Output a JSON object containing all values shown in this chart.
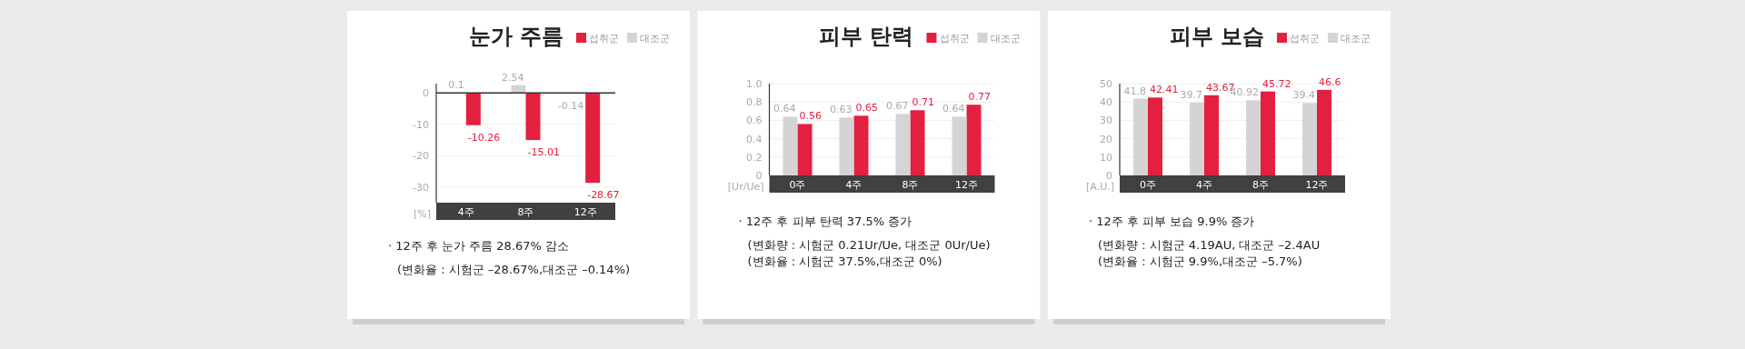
{
  "chart_data": [
    {
      "type": "bar",
      "title": "눈가 주름",
      "ylabel": "[%]",
      "categories": [
        "4주",
        "8주",
        "12주"
      ],
      "ylim": [
        -35,
        3
      ],
      "yticks": [
        0,
        -10,
        -20,
        -30
      ],
      "grid": "y",
      "legend": "top right",
      "data_labels": true,
      "series": [
        {
          "name": "섭취군",
          "color": "#e3203f",
          "values": [
            -10.26,
            -15.01,
            -28.67
          ]
        },
        {
          "name": "대조군",
          "color": "#d4d4d4",
          "values": [
            0.1,
            2.54,
            -0.14
          ]
        }
      ],
      "annotations": [
        "· 12주 후 눈가 주름 28.67% 감소",
        "(변화율 : 시험군 –28.67%,대조군 –0.14%)"
      ]
    },
    {
      "type": "bar",
      "title": "피부 탄력",
      "ylabel": "[Ur/Ue]",
      "categories": [
        "0주",
        "4주",
        "8주",
        "12주"
      ],
      "ylim": [
        0,
        1
      ],
      "yticks": [
        {
          "value": 0,
          "label": "0"
        },
        {
          "value": 0.2,
          "label": "0.2"
        },
        {
          "value": 0.4,
          "label": "0.4"
        },
        {
          "value": 0.6,
          "label": "0.6"
        },
        {
          "value": 0.8,
          "label": "0.8"
        },
        {
          "value": 1,
          "label": "1.0"
        }
      ],
      "grid": "y",
      "legend": "top right",
      "data_labels": true,
      "series": [
        {
          "name": "섭취군",
          "color": "#e3203f",
          "values": [
            0.56,
            0.65,
            0.71,
            0.77
          ]
        },
        {
          "name": "대조군",
          "color": "#d4d4d4",
          "values": [
            0.64,
            0.63,
            0.67,
            0.64
          ]
        }
      ],
      "annotations": [
        "· 12주 후 피부 탄력 37.5% 증가",
        "(변화량 : 시험군 0.21Ur/Ue, 대조군 0Ur/Ue)",
        "(변화율 : 시험군 37.5%,대조군 0%)"
      ]
    },
    {
      "type": "bar",
      "title": "피부 보습",
      "ylabel": "[A.U.]",
      "categories": [
        "0주",
        "4주",
        "8주",
        "12주"
      ],
      "ylim": [
        0,
        50
      ],
      "yticks": [
        0,
        10,
        20,
        30,
        40,
        50
      ],
      "grid": "y",
      "legend": "top right",
      "data_labels": true,
      "series": [
        {
          "name": "섭취군",
          "color": "#e3203f",
          "values": [
            42.41,
            43.67,
            45.72,
            46.6
          ]
        },
        {
          "name": "대조군",
          "color": "#d4d4d4",
          "values": [
            41.8,
            39.7,
            40.92,
            39.4
          ]
        }
      ],
      "annotations": [
        "· 12주 후 피부 보습 9.9% 증가",
        "(변화량 : 시험군 4.19AU, 대조군 –2.4AU",
        "(변화율 : 시험군 9.9%,대조군 –5.7%)"
      ]
    }
  ]
}
